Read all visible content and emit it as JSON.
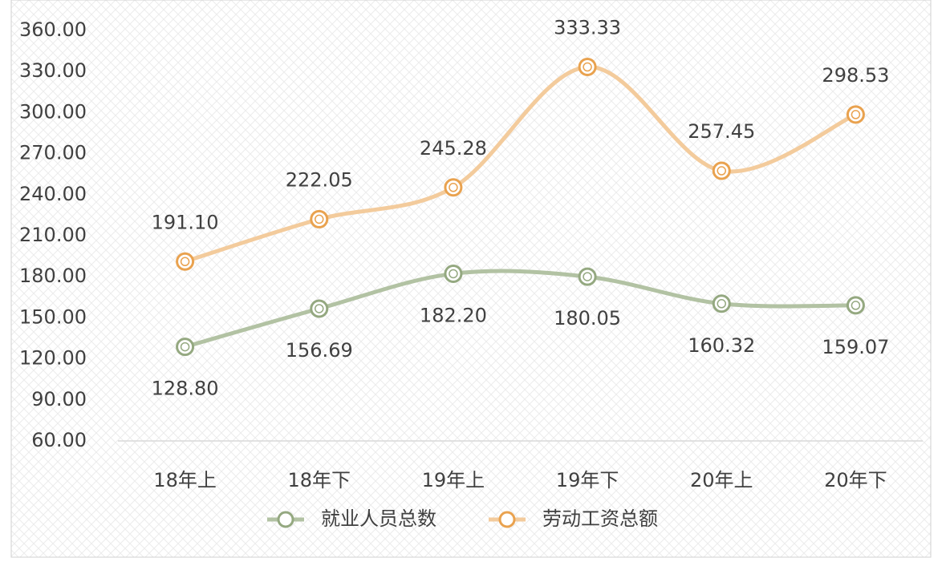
{
  "chart_data": {
    "type": "line",
    "categories": [
      "18年上",
      "18年下",
      "19年上",
      "19年下",
      "20年上",
      "20年下"
    ],
    "series": [
      {
        "name": "就业人员总数",
        "color": "#b2c2a3",
        "marker_color": "#94a880",
        "values": [
          128.8,
          156.69,
          182.2,
          180.05,
          160.32,
          159.07
        ],
        "value_labels": [
          "128.80",
          "156.69",
          "182.20",
          "180.05",
          "160.32",
          "159.07"
        ]
      },
      {
        "name": "劳动工资总额",
        "color": "#f3cb9c",
        "marker_color": "#e9a24f",
        "values": [
          191.1,
          222.05,
          245.28,
          333.33,
          257.45,
          298.53
        ],
        "value_labels": [
          "191.10",
          "222.05",
          "245.28",
          "333.33",
          "257.45",
          "298.53"
        ]
      }
    ],
    "ylim": [
      60,
      360
    ],
    "yticks": [
      {
        "value": 60,
        "label": "60.00"
      },
      {
        "value": 90,
        "label": "90.00"
      },
      {
        "value": 120,
        "label": "120.00"
      },
      {
        "value": 150,
        "label": "150.00"
      },
      {
        "value": 180,
        "label": "180.00"
      },
      {
        "value": 210,
        "label": "210.00"
      },
      {
        "value": 240,
        "label": "240.00"
      },
      {
        "value": 270,
        "label": "270.00"
      },
      {
        "value": 300,
        "label": "300.00"
      },
      {
        "value": 330,
        "label": "330.00"
      },
      {
        "value": 360,
        "label": "360.00"
      }
    ],
    "smooth": true,
    "legend": "bottom"
  }
}
